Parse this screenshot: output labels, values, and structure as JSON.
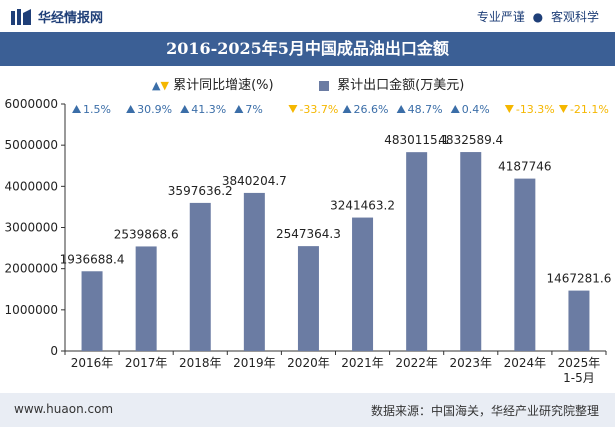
{
  "header": {
    "brand_name": "华经情报网",
    "slogan_left": "专业严谨",
    "slogan_sep": "●",
    "slogan_right": "客观科学"
  },
  "title": "2016-2025年5月中国成品油出口金额",
  "legend": {
    "growth_label": "累计同比增速(%)",
    "amount_label": "累计出口金额(万美元)"
  },
  "chart_data": {
    "type": "bar",
    "title": "2016-2025年5月中国成品油出口金额",
    "categories": [
      "2016年",
      "2017年",
      "2018年",
      "2019年",
      "2020年",
      "2021年",
      "2022年",
      "2023年",
      "2024年",
      "2025年\n1-5月"
    ],
    "series": [
      {
        "name": "累计出口金额(万美元)",
        "values": [
          1936688.4,
          2539868.6,
          3597636.2,
          3840204.7,
          2547364.3,
          3241463.2,
          4830115.1,
          4832589.4,
          4187746,
          1467281.6
        ],
        "labels": [
          "1936688.4",
          "2539868.6",
          "3597636.2",
          "3840204.7",
          "2547364.3",
          "3241463.2",
          "4830115.1",
          "4832589.4",
          "4187746",
          "1467281.6"
        ]
      },
      {
        "name": "累计同比增速(%)",
        "values": [
          1.5,
          30.9,
          41.3,
          7,
          -33.7,
          26.6,
          48.7,
          0.4,
          -13.3,
          -21.1
        ],
        "labels": [
          "1.5%",
          "30.9%",
          "41.3%",
          "7%",
          "-33.7%",
          "26.6%",
          "48.7%",
          "0.4%",
          "-13.3%",
          "-21.1%"
        ]
      }
    ],
    "y_ticks": [
      "0",
      "1000000",
      "2000000",
      "3000000",
      "4000000",
      "5000000",
      "6000000"
    ],
    "ylim": [
      0,
      6000000
    ],
    "grid": false,
    "legend_position": "top-center",
    "colors": {
      "bar": "#6b7ca3",
      "up": "#3b6ea8",
      "down": "#f5b700"
    }
  },
  "footer": {
    "site": "www.huaon.com",
    "source": "数据来源：中国海关，华经产业研究院整理"
  }
}
